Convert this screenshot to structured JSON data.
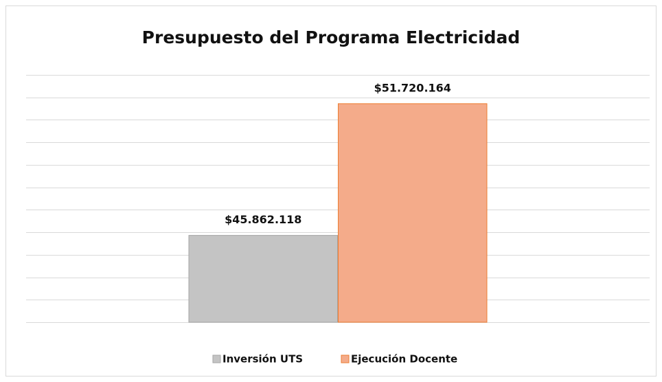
{
  "chart_data": {
    "type": "bar",
    "title": "Presupuesto del Programa Electricidad",
    "categories": [
      null
    ],
    "series": [
      {
        "name": "Inversión UTS",
        "color": "#c4c4c4",
        "values": [
          45862118
        ],
        "value_labels": [
          "$45.862.118"
        ]
      },
      {
        "name": "Ejecución Docente",
        "color": "#f4ab8a",
        "values": [
          51720164
        ],
        "value_labels": [
          "$51.720.164"
        ]
      }
    ],
    "ylim": [
      42000000,
      53000000
    ],
    "yticks": [
      42000000,
      43000000,
      44000000,
      45000000,
      46000000,
      47000000,
      48000000,
      49000000,
      50000000,
      51000000,
      52000000,
      53000000
    ],
    "grid": true,
    "legend": "bottom"
  }
}
